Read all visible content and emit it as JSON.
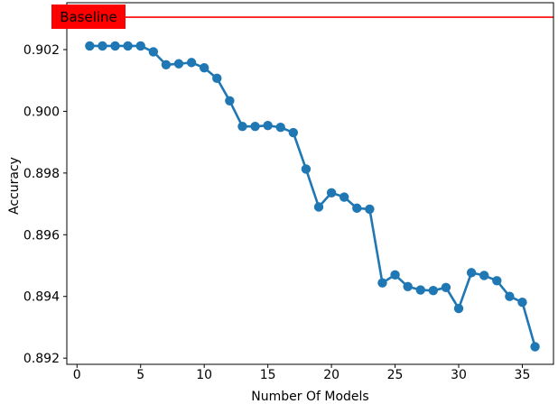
{
  "figure": {
    "background": "#ffffff",
    "text_color": "#000000"
  },
  "chart_data": {
    "type": "line",
    "title": "",
    "xlabel": "Number Of Models",
    "ylabel": "Accuracy",
    "grid": false,
    "legend_position": "none",
    "marker": "o",
    "line_color": "#1f77b4",
    "xlim": [
      -0.8,
      37.45
    ],
    "ylim": [
      0.8918,
      0.90352
    ],
    "xticks": [
      0,
      5,
      10,
      15,
      20,
      25,
      30,
      35
    ],
    "xtick_labels": [
      "0",
      "5",
      "10",
      "15",
      "20",
      "25",
      "30",
      "35"
    ],
    "yticks": [
      0.902,
      0.9,
      0.898,
      0.896,
      0.894,
      0.892
    ],
    "ytick_labels": [
      "0.902",
      "0.900",
      "0.898",
      "0.896",
      "0.894",
      "0.892"
    ],
    "x": [
      1,
      2,
      3,
      4,
      5,
      6,
      7,
      8,
      9,
      10,
      11,
      12,
      13,
      14,
      15,
      16,
      17,
      18,
      19,
      20,
      21,
      22,
      23,
      24,
      25,
      26,
      27,
      28,
      29,
      30,
      31,
      32,
      33,
      34,
      35,
      36
    ],
    "series": [
      {
        "name": "Accuracy",
        "color": "#1f77b4",
        "values": [
          0.90212,
          0.90212,
          0.90212,
          0.90212,
          0.90212,
          0.90193,
          0.90151,
          0.90154,
          0.90158,
          0.90141,
          0.90107,
          0.90034,
          0.89951,
          0.89951,
          0.89954,
          0.89948,
          0.89931,
          0.89813,
          0.8969,
          0.89736,
          0.89722,
          0.89686,
          0.89683,
          0.89444,
          0.8947,
          0.89432,
          0.89421,
          0.89419,
          0.89429,
          0.89361,
          0.89477,
          0.89468,
          0.89451,
          0.894,
          0.89381,
          0.89237
        ]
      }
    ],
    "baseline": {
      "label": "Baseline",
      "value": 0.90305,
      "line_color": "#ff0000",
      "box_color": "#ff0000",
      "text_color": "#000000"
    }
  }
}
